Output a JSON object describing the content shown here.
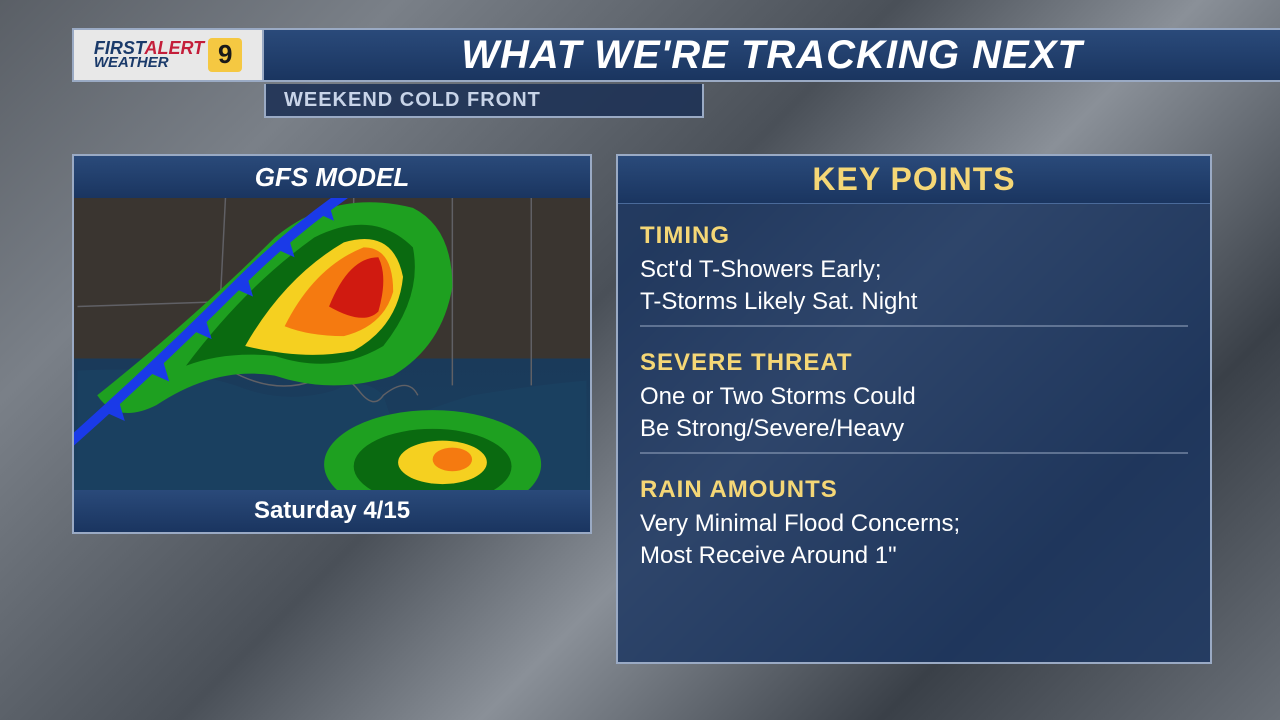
{
  "logo": {
    "first": "FIRST",
    "alert": "ALERT",
    "weather": "WEATHER",
    "channel": "9"
  },
  "title": "WHAT WE'RE TRACKING NEXT",
  "subtitle": "WEEKEND COLD FRONT",
  "map": {
    "header": "GFS MODEL",
    "footer": "Saturday 4/15",
    "radar": {
      "green": "#1ea020",
      "darkgreen": "#0a6a10",
      "yellow": "#f5d020",
      "orange": "#f57a10",
      "red": "#d01a10",
      "front_color": "#1a3ae8",
      "land_color": "#3a3530",
      "water_color": "#1a4060",
      "border_color": "#606065"
    }
  },
  "key": {
    "header": "KEY POINTS",
    "sections": [
      {
        "title": "TIMING",
        "text": "Sct'd T-Showers Early;\nT-Storms Likely Sat. Night"
      },
      {
        "title": "SEVERE THREAT",
        "text": "One or Two Storms Could\nBe Strong/Severe/Heavy"
      },
      {
        "title": "RAIN AMOUNTS",
        "text": "Very Minimal Flood Concerns;\nMost Receive Around 1\""
      }
    ]
  },
  "colors": {
    "panel_bg": "#1a3560",
    "panel_border": "#9aaac4",
    "accent": "#f5d776",
    "text": "#ffffff"
  }
}
